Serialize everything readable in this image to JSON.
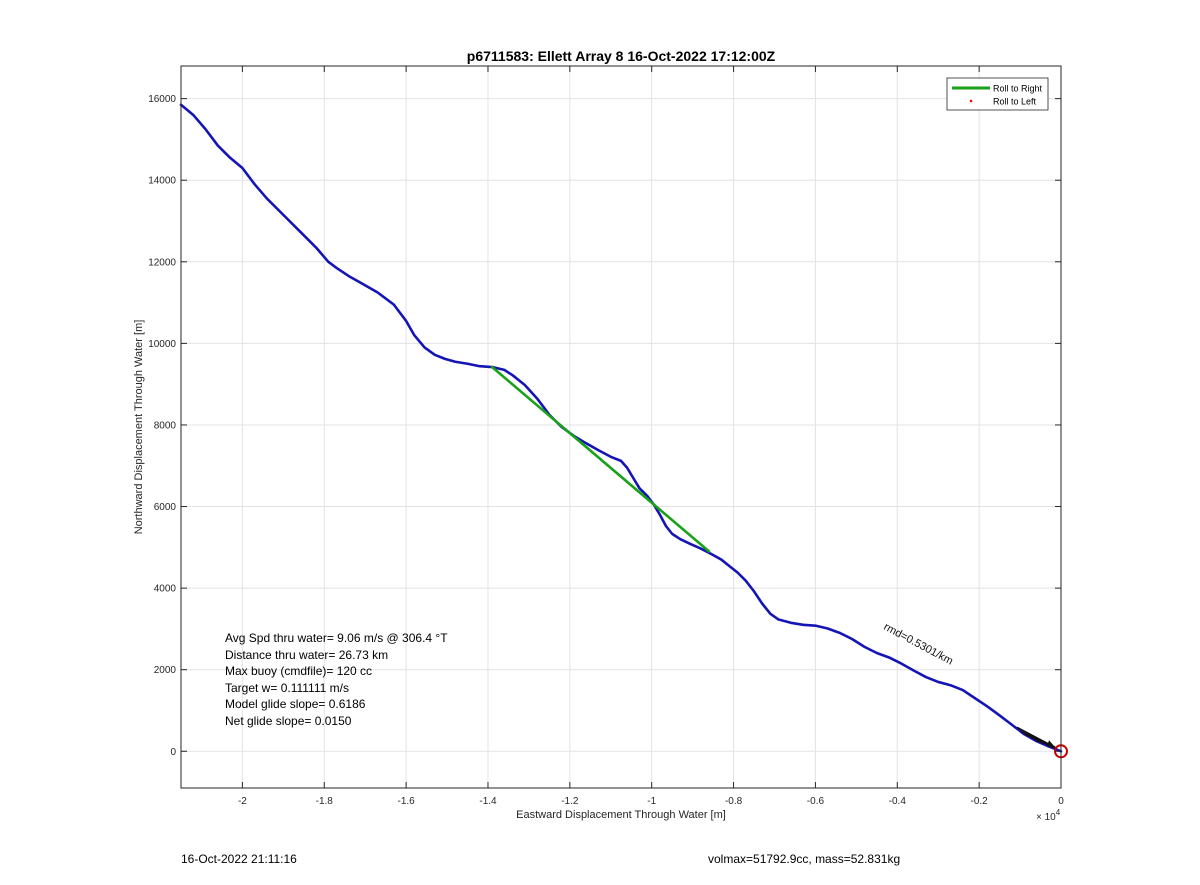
{
  "chart_data": {
    "type": "line",
    "title": "p6711583: Ellett Array 8 16-Oct-2022 17:12:00Z",
    "xlabel": "Eastward Displacement Through Water [m]",
    "ylabel": "Northward Displacement Through Water [m]",
    "x_exponent_label": "× 10",
    "x_exponent_power": "4",
    "x_scale_factor": 10000,
    "xlim": [
      -2.15,
      0
    ],
    "ylim": [
      -900,
      16800
    ],
    "x_ticks": [
      -2,
      -1.8,
      -1.6,
      -1.4,
      -1.2,
      -1,
      -0.8,
      -0.6,
      -0.4,
      -0.2,
      0
    ],
    "x_tick_labels": [
      "-2",
      "-1.8",
      "-1.6",
      "-1.4",
      "-1.2",
      "-1",
      "-0.8",
      "-0.6",
      "-0.4",
      "-0.2",
      "0"
    ],
    "y_ticks": [
      0,
      2000,
      4000,
      6000,
      8000,
      10000,
      12000,
      14000,
      16000
    ],
    "y_tick_labels": [
      "0",
      "2000",
      "4000",
      "6000",
      "8000",
      "10000",
      "12000",
      "14000",
      "16000"
    ],
    "grid": true,
    "legend_position": "top-right",
    "legend": [
      {
        "label": "Roll to Right",
        "color": "#1aa11a",
        "style": "line"
      },
      {
        "label": "Roll to Left",
        "color": "#ff0000",
        "style": "dot"
      }
    ],
    "series": [
      {
        "name": "track",
        "color": "#1515b5",
        "x": [
          -2.15,
          -2.12,
          -2.09,
          -2.06,
          -2.03,
          -2.0,
          -1.97,
          -1.94,
          -1.9,
          -1.86,
          -1.82,
          -1.79,
          -1.77,
          -1.74,
          -1.71,
          -1.67,
          -1.63,
          -1.6,
          -1.58,
          -1.555,
          -1.53,
          -1.505,
          -1.48,
          -1.45,
          -1.42,
          -1.39,
          -1.36,
          -1.34,
          -1.31,
          -1.28,
          -1.25,
          -1.22,
          -1.19,
          -1.16,
          -1.13,
          -1.1,
          -1.075,
          -1.06,
          -1.045,
          -1.03,
          -1.01,
          -0.995,
          -0.98,
          -0.965,
          -0.95,
          -0.93,
          -0.905,
          -0.88,
          -0.855,
          -0.83,
          -0.81,
          -0.79,
          -0.77,
          -0.75,
          -0.73,
          -0.71,
          -0.69,
          -0.66,
          -0.63,
          -0.6,
          -0.57,
          -0.54,
          -0.51,
          -0.48,
          -0.45,
          -0.42,
          -0.39,
          -0.36,
          -0.33,
          -0.3,
          -0.27,
          -0.24,
          -0.21,
          -0.18,
          -0.15,
          -0.12,
          -0.09,
          -0.06,
          -0.03,
          -0.01,
          0.0
        ],
        "y": [
          15850,
          15600,
          15250,
          14850,
          14550,
          14300,
          13900,
          13550,
          13150,
          12750,
          12350,
          12000,
          11850,
          11650,
          11480,
          11250,
          10950,
          10550,
          10200,
          9900,
          9720,
          9620,
          9550,
          9500,
          9440,
          9420,
          9350,
          9220,
          8980,
          8650,
          8250,
          7950,
          7730,
          7550,
          7380,
          7220,
          7120,
          6950,
          6700,
          6450,
          6250,
          6050,
          5800,
          5520,
          5330,
          5200,
          5080,
          4970,
          4840,
          4700,
          4540,
          4380,
          4180,
          3920,
          3620,
          3370,
          3230,
          3150,
          3100,
          3080,
          3010,
          2900,
          2750,
          2560,
          2410,
          2300,
          2150,
          1980,
          1820,
          1700,
          1620,
          1500,
          1300,
          1100,
          880,
          650,
          420,
          250,
          120,
          40,
          0
        ]
      },
      {
        "name": "Roll to Right",
        "color": "#1aa11a",
        "x": [
          -1.39,
          -0.86
        ],
        "y": [
          9420,
          4900
        ]
      }
    ],
    "annotations": {
      "stats": [
        "Avg Spd thru water=  9.06 m/s @ 306.4 °T",
        "Distance thru water= 26.73 km",
        "Max buoy (cmdfile)= 120 cc",
        "Target w= 0.111111 m/s",
        "Model glide slope= 0.6186",
        "Net glide slope= 0.0150"
      ],
      "rotated_label": "rmd=0.5301/km",
      "rotated_label_rotation_deg": 28,
      "end_marker": {
        "x": 0,
        "y": 0,
        "color": "#cc0000"
      }
    }
  },
  "footer": {
    "left": "16-Oct-2022 21:11:16",
    "right": "volmax=51792.9cc, mass=52.831kg"
  }
}
